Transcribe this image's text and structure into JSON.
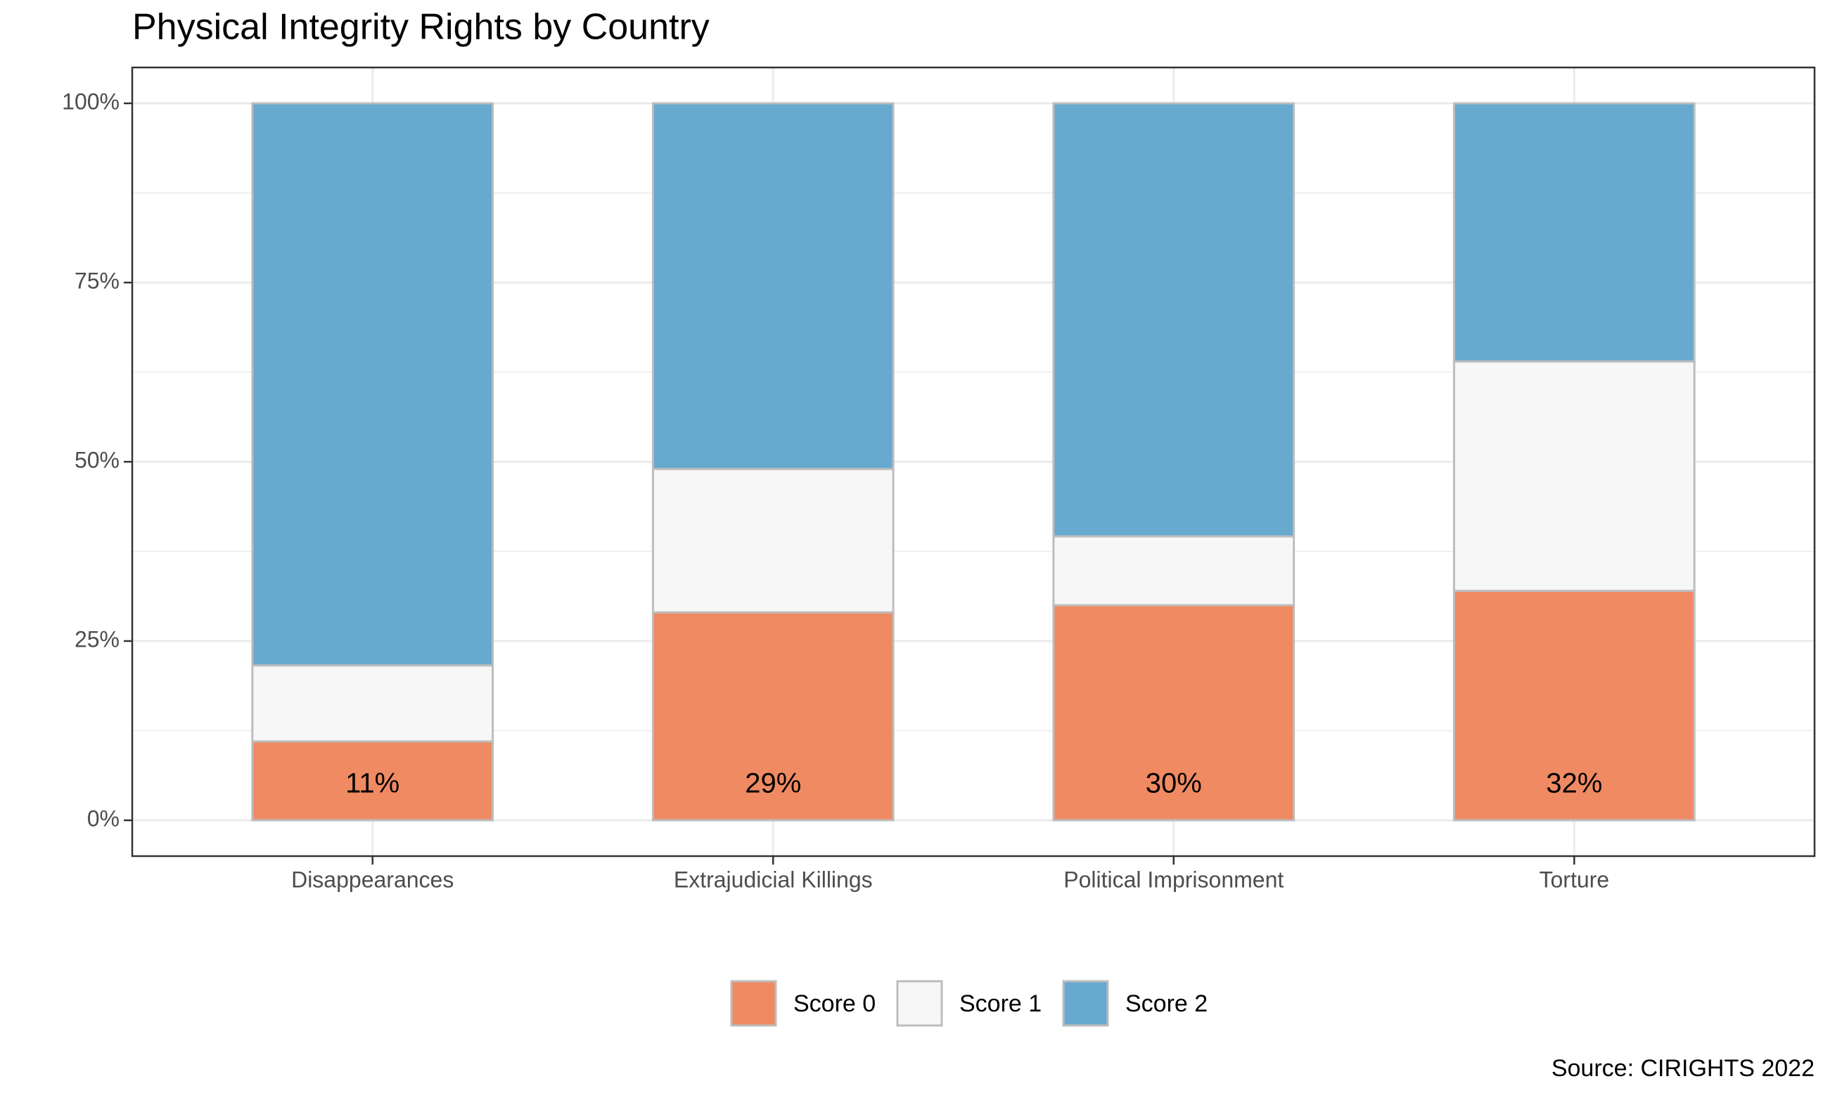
{
  "chart_data": {
    "type": "stacked_bar",
    "title": "Physical Integrity Rights by Country",
    "caption": "Source: CIRIGHTS 2022",
    "categories": [
      "Disappearances",
      "Extrajudicial Killings",
      "Political Imprisonment",
      "Torture"
    ],
    "series": [
      {
        "name": "Score 0",
        "color": "#ef8a62",
        "values": [
          11,
          29,
          30,
          32
        ],
        "value_labels": [
          "11%",
          "29%",
          "30%",
          "32%"
        ]
      },
      {
        "name": "Score 1",
        "color": "#f7f7f7",
        "values": [
          10.6,
          20,
          9.6,
          32
        ]
      },
      {
        "name": "Score 2",
        "color": "#67a9cf",
        "values": [
          78.4,
          51,
          60.4,
          36
        ]
      }
    ],
    "ylim": [
      -5,
      105
    ],
    "yticks": [
      {
        "value": 0,
        "label": "0%"
      },
      {
        "value": 25,
        "label": "25%"
      },
      {
        "value": 50,
        "label": "50%"
      },
      {
        "value": 75,
        "label": "75%"
      },
      {
        "value": 100,
        "label": "100%"
      }
    ],
    "grid": true,
    "legend": "bottom"
  }
}
